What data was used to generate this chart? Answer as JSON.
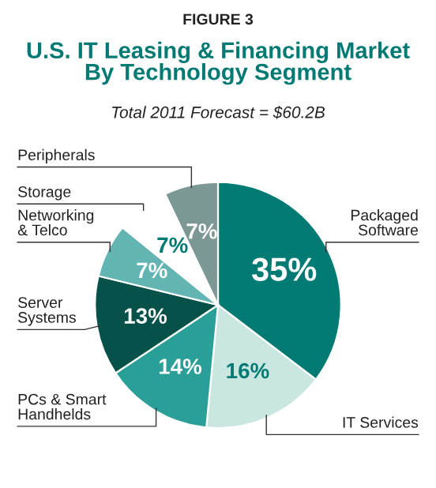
{
  "chart_data": {
    "type": "pie",
    "title": "U.S. IT Leasing & Financing Market\nBy Technology Segment",
    "subtitle": "Total 2011 Forecast = $60.2B",
    "annotations": [
      "FIGURE 3"
    ],
    "categories": [
      "Packaged\nSoftware",
      "IT Services",
      "PCs & Smart\nHandhelds",
      "Server\nSystems",
      "Networking\n& Telco",
      "Storage",
      "Peripherals"
    ],
    "values": [
      35,
      16,
      14,
      13,
      7,
      7,
      7
    ],
    "colors": [
      "#007b74",
      "#c9e6e1",
      "#2a9f98",
      "#07514b",
      "#62b5b2",
      "#ffffff",
      "#7c9895"
    ],
    "value_labels": [
      "35%",
      "16%",
      "14%",
      "13%",
      "7%",
      "7%",
      "7%"
    ]
  }
}
